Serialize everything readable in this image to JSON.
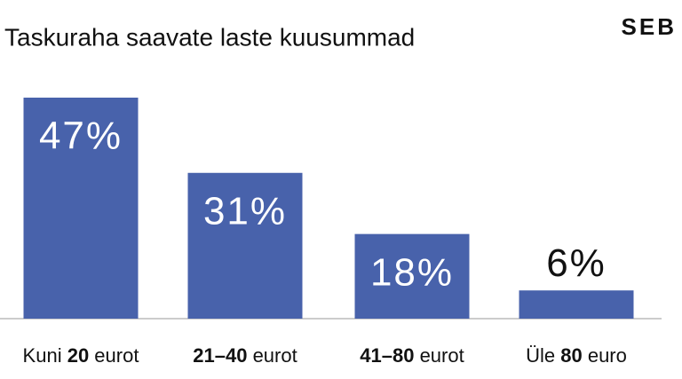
{
  "chart_data": {
    "type": "bar",
    "title": "Taskuraha saavate laste kuusummad",
    "logo": "SEB",
    "categories": [
      "Kuni 20 eurot",
      "21–40 eurot",
      "41–80 eurot",
      "Üle 80 euro"
    ],
    "values": [
      47,
      31,
      18,
      6
    ],
    "value_labels": [
      "47%",
      "31%",
      "18%",
      "6%"
    ],
    "color": "#4862ab"
  }
}
